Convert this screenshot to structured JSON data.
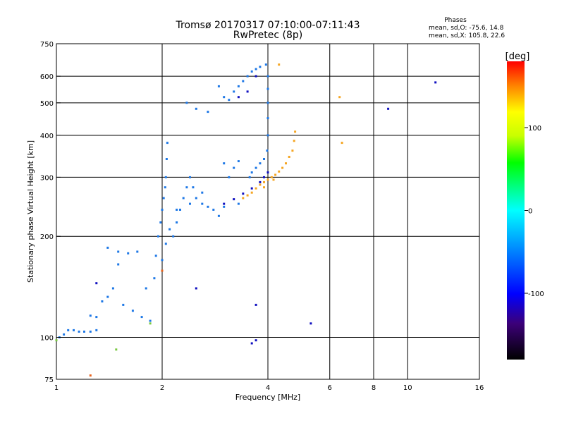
{
  "header": {
    "title": "Tromsø 20170317 07:10:00-07:11:43",
    "subtitle": "RwPretec (8p)",
    "stats_title": "Phases",
    "stats_line1": "mean, sd,O: -75.6, 14.8",
    "stats_line2": "mean, sd,X: 105.8, 22.6"
  },
  "chart_data": {
    "type": "scatter",
    "title": "Tromsø 20170317 07:10:00-07:11:43",
    "subtitle": "RwPretec (8p)",
    "xlabel": "Frequency [MHz]",
    "ylabel": "Stationary phase Virtual Height [km]",
    "x_scale": "log",
    "y_scale": "log",
    "xlim": [
      1,
      16
    ],
    "ylim": [
      75,
      750
    ],
    "x_ticks": [
      1,
      2,
      4,
      6,
      8,
      10,
      16
    ],
    "x_tick_labels": [
      "1",
      "2",
      "4",
      "6",
      "8",
      "10",
      "16"
    ],
    "y_ticks": [
      75,
      100,
      200,
      300,
      400,
      500,
      600,
      750
    ],
    "y_tick_labels": [
      "75",
      "100",
      "200",
      "300",
      "400",
      "500",
      "600",
      "750"
    ],
    "x_grid": [
      1,
      2,
      4,
      6,
      8,
      10,
      16
    ],
    "y_grid": [
      100,
      200,
      300,
      400,
      500,
      600
    ],
    "grid": true,
    "colorbar": {
      "label": "[deg]",
      "range": [
        -180,
        180
      ],
      "ticks": [
        100,
        0,
        -100
      ],
      "tick_labels": [
        "100",
        "0",
        "-100"
      ]
    },
    "series": [
      {
        "name": "O",
        "phase": -75,
        "color": "#1e78e6",
        "points": [
          [
            1.02,
            100
          ],
          [
            1.05,
            102
          ],
          [
            1.08,
            105
          ],
          [
            1.12,
            105
          ],
          [
            1.16,
            104
          ],
          [
            1.2,
            104
          ],
          [
            1.25,
            104
          ],
          [
            1.3,
            105
          ],
          [
            1.25,
            116
          ],
          [
            1.3,
            115
          ],
          [
            1.35,
            128
          ],
          [
            1.4,
            132
          ],
          [
            1.45,
            140
          ],
          [
            1.5,
            165
          ],
          [
            1.4,
            185
          ],
          [
            1.5,
            180
          ],
          [
            1.6,
            178
          ],
          [
            1.7,
            180
          ],
          [
            1.55,
            125
          ],
          [
            1.65,
            120
          ],
          [
            1.75,
            115
          ],
          [
            1.85,
            112
          ],
          [
            1.8,
            140
          ],
          [
            1.9,
            150
          ],
          [
            1.92,
            175
          ],
          [
            1.95,
            200
          ],
          [
            1.98,
            220
          ],
          [
            2.0,
            240
          ],
          [
            2.02,
            260
          ],
          [
            2.04,
            280
          ],
          [
            2.05,
            300
          ],
          [
            2.06,
            340
          ],
          [
            2.07,
            380
          ],
          [
            2.0,
            170
          ],
          [
            2.05,
            190
          ],
          [
            2.1,
            210
          ],
          [
            2.15,
            200
          ],
          [
            2.2,
            220
          ],
          [
            2.25,
            240
          ],
          [
            2.3,
            260
          ],
          [
            2.35,
            280
          ],
          [
            2.4,
            300
          ],
          [
            2.45,
            280
          ],
          [
            2.5,
            260
          ],
          [
            2.6,
            250
          ],
          [
            2.7,
            245
          ],
          [
            2.8,
            240
          ],
          [
            2.9,
            230
          ],
          [
            2.35,
            500
          ],
          [
            2.5,
            480
          ],
          [
            2.7,
            470
          ],
          [
            2.9,
            560
          ],
          [
            3.0,
            520
          ],
          [
            3.1,
            510
          ],
          [
            3.2,
            540
          ],
          [
            3.3,
            560
          ],
          [
            3.4,
            580
          ],
          [
            3.5,
            600
          ],
          [
            3.6,
            620
          ],
          [
            3.7,
            630
          ],
          [
            3.8,
            640
          ],
          [
            3.95,
            650
          ],
          [
            4.0,
            600
          ],
          [
            4.0,
            550
          ],
          [
            4.0,
            500
          ],
          [
            4.0,
            450
          ],
          [
            4.0,
            400
          ],
          [
            3.98,
            360
          ],
          [
            3.9,
            340
          ],
          [
            3.8,
            330
          ],
          [
            3.7,
            320
          ],
          [
            3.6,
            310
          ],
          [
            3.55,
            300
          ],
          [
            3.3,
            250
          ],
          [
            3.0,
            245
          ],
          [
            2.6,
            270
          ],
          [
            2.4,
            250
          ],
          [
            2.2,
            240
          ],
          [
            3.3,
            335
          ],
          [
            3.1,
            300
          ],
          [
            3.0,
            330
          ],
          [
            3.2,
            320
          ]
        ]
      },
      {
        "name": "X",
        "phase": 105,
        "color": "#f5a623",
        "points": [
          [
            3.4,
            260
          ],
          [
            3.5,
            265
          ],
          [
            3.6,
            270
          ],
          [
            3.7,
            278
          ],
          [
            3.8,
            285
          ],
          [
            3.9,
            290
          ],
          [
            4.0,
            295
          ],
          [
            4.1,
            300
          ],
          [
            4.2,
            305
          ],
          [
            4.3,
            312
          ],
          [
            4.4,
            320
          ],
          [
            4.5,
            330
          ],
          [
            4.6,
            345
          ],
          [
            4.7,
            360
          ],
          [
            4.75,
            385
          ],
          [
            4.78,
            410
          ],
          [
            3.9,
            280
          ],
          [
            4.15,
            295
          ],
          [
            6.5,
            380
          ],
          [
            6.4,
            520
          ],
          [
            4.3,
            650
          ]
        ]
      },
      {
        "name": "",
        "phase": -130,
        "color": "#1010c0",
        "points": [
          [
            3.0,
            250
          ],
          [
            3.2,
            258
          ],
          [
            3.4,
            268
          ],
          [
            3.6,
            278
          ],
          [
            3.8,
            290
          ],
          [
            3.9,
            300
          ],
          [
            4.0,
            310
          ],
          [
            3.3,
            520
          ],
          [
            3.5,
            540
          ],
          [
            3.7,
            600
          ],
          [
            2.5,
            140
          ],
          [
            3.7,
            125
          ],
          [
            5.3,
            110
          ],
          [
            3.7,
            98
          ],
          [
            3.6,
            96
          ],
          [
            8.8,
            480
          ],
          [
            12.0,
            575
          ],
          [
            1.3,
            145
          ]
        ]
      },
      {
        "name": "",
        "phase": 50,
        "color": "#7ac943",
        "points": [
          [
            1.48,
            92
          ],
          [
            1.85,
            110
          ],
          [
            1.0,
            98
          ]
        ]
      },
      {
        "name": "",
        "phase": 150,
        "color": "#e8641e",
        "points": [
          [
            1.25,
            77
          ],
          [
            2.0,
            158
          ]
        ]
      }
    ]
  }
}
